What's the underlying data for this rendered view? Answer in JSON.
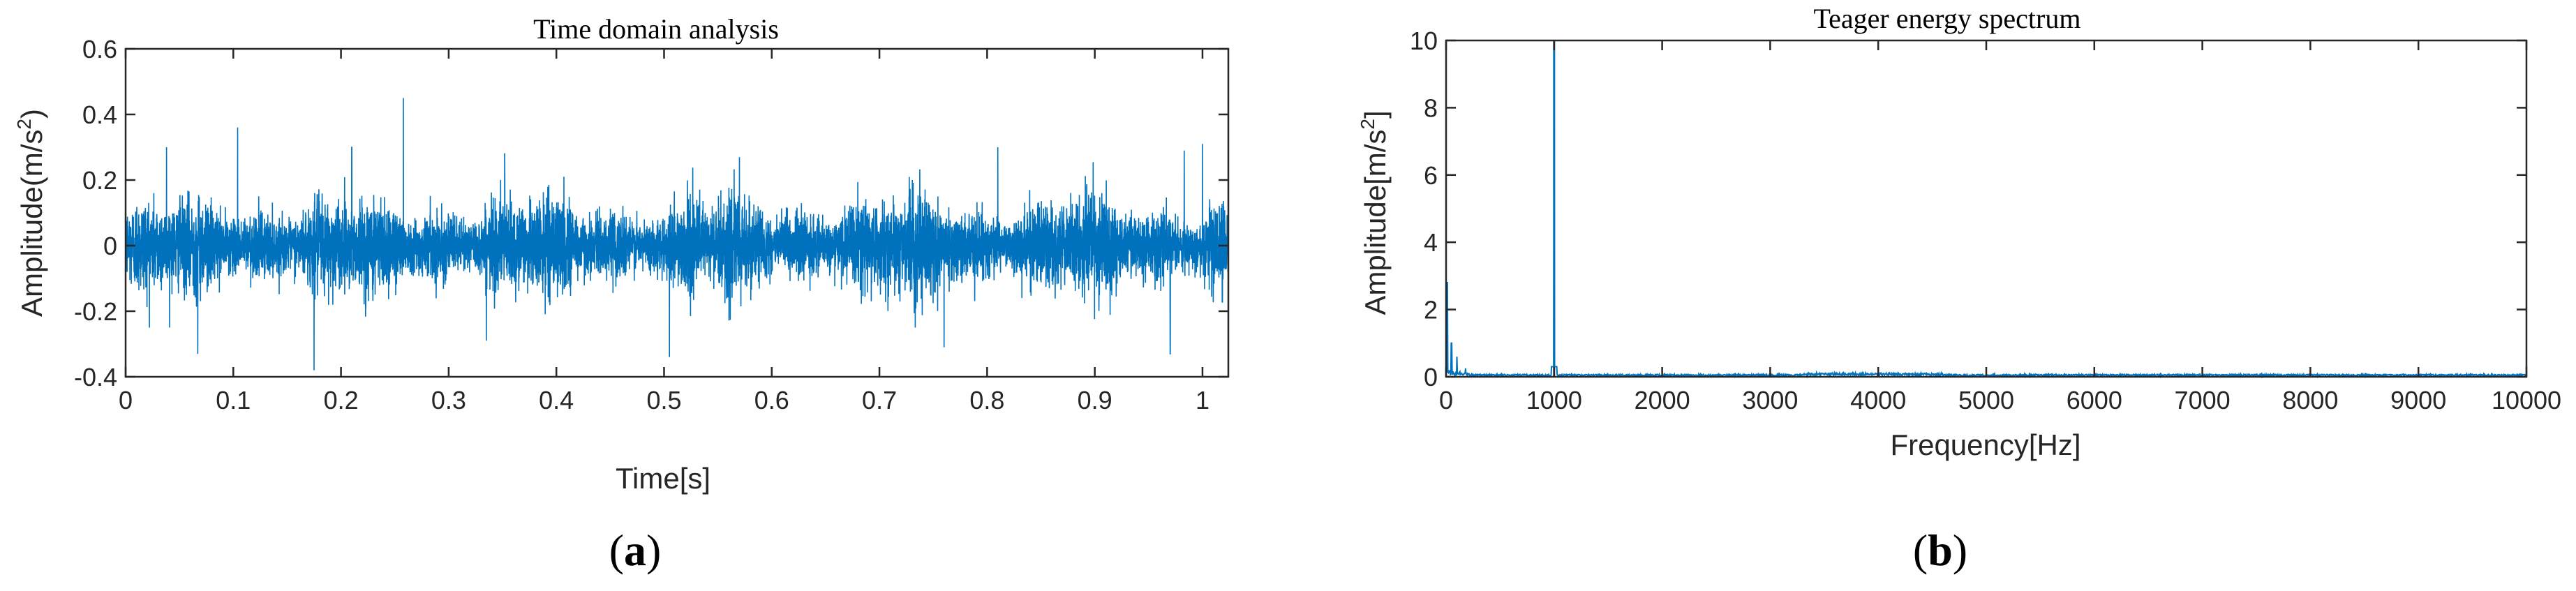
{
  "chart_data": [
    {
      "id": "a",
      "type": "line",
      "title": "Time domain analysis",
      "xlabel": "Time[s]",
      "ylabel_main": "Amplitude(m/s",
      "ylabel_sup": "2",
      "ylabel_close": ")",
      "xlim": [
        0,
        1.024
      ],
      "ylim": [
        -0.4,
        0.6
      ],
      "xticks": [
        0,
        0.1,
        0.2,
        0.3,
        0.4,
        0.5,
        0.6,
        0.7,
        0.8,
        0.9,
        1
      ],
      "xtick_labels": [
        "0",
        "0.1",
        "0.2",
        "0.3",
        "0.4",
        "0.5",
        "0.6",
        "0.7",
        "0.8",
        "0.9",
        "1"
      ],
      "yticks": [
        -0.4,
        -0.2,
        0,
        0.2,
        0.4,
        0.6
      ],
      "ytick_labels": [
        "-0.4",
        "-0.2",
        "0",
        "0.2",
        "0.4",
        "0.6"
      ],
      "grid": false,
      "line_color": "#0072BD",
      "signal": {
        "description_values": "vibration signal, zero mean, dense noise",
        "peak_points": [
          {
            "x": 0.258,
            "y": 0.45
          },
          {
            "x": 0.104,
            "y": 0.36
          },
          {
            "x": 0.175,
            "y": -0.38
          },
          {
            "x": 0.038,
            "y": 0.3
          },
          {
            "x": 0.21,
            "y": 0.3
          },
          {
            "x": 0.352,
            "y": 0.28
          },
          {
            "x": 0.57,
            "y": 0.27
          },
          {
            "x": 0.81,
            "y": 0.3
          },
          {
            "x": 0.983,
            "y": 0.29
          },
          {
            "x": 1.0,
            "y": 0.31
          },
          {
            "x": 0.067,
            "y": -0.33
          },
          {
            "x": 0.335,
            "y": -0.29
          },
          {
            "x": 0.505,
            "y": -0.34
          },
          {
            "x": 0.76,
            "y": -0.31
          },
          {
            "x": 0.97,
            "y": -0.33
          }
        ]
      },
      "panel_label_open": "(",
      "panel_label_letter": "a",
      "panel_label_close": ")"
    },
    {
      "id": "b",
      "type": "line",
      "title": "Teager energy spectrum",
      "xlabel": "Frequency[Hz]",
      "ylabel_main": "Amplitude[m/s",
      "ylabel_sup": "2",
      "ylabel_close": "]",
      "xlim": [
        0,
        10000
      ],
      "ylim": [
        0,
        10
      ],
      "xticks": [
        0,
        1000,
        2000,
        3000,
        4000,
        5000,
        6000,
        7000,
        8000,
        9000,
        10000
      ],
      "xtick_labels": [
        "0",
        "1000",
        "2000",
        "3000",
        "4000",
        "5000",
        "6000",
        "7000",
        "8000",
        "9000",
        "10000"
      ],
      "yticks": [
        0,
        2,
        4,
        6,
        8,
        10
      ],
      "ytick_labels": [
        "0",
        "2",
        "4",
        "6",
        "8",
        "10"
      ],
      "grid": false,
      "line_color": "#0072BD",
      "spectrum": {
        "dominant_peak": {
          "x": 1000,
          "y": 10
        },
        "low_freq_peaks": [
          {
            "x": 10,
            "y": 2.8
          },
          {
            "x": 50,
            "y": 1.0
          },
          {
            "x": 100,
            "y": 0.6
          },
          {
            "x": 180,
            "y": 0.25
          }
        ],
        "noise_floor": 0.05
      },
      "panel_label_open": "(",
      "panel_label_letter": "b",
      "panel_label_close": ")"
    }
  ]
}
